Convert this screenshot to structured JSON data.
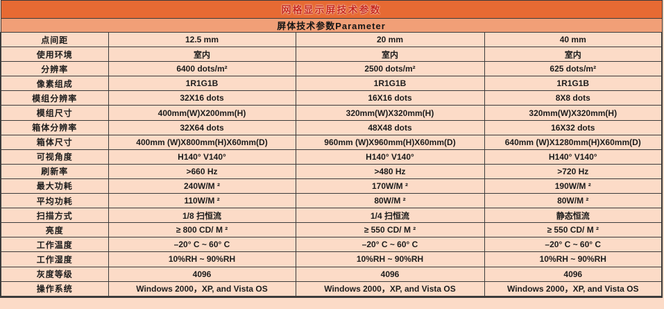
{
  "title": "网格显示屏技术参数",
  "subtitle": "屏体技术参数Parameter",
  "colors": {
    "title_bg": "#e76a33",
    "title_text": "#c8281c",
    "subtitle_bg": "#f19f77",
    "cell_bg": "#fcdbc7",
    "border": "#3b3b3b",
    "text": "#1c1c1c"
  },
  "table": {
    "rows": [
      {
        "label": "点间距",
        "values": [
          "12.5 mm",
          "20 mm",
          "40 mm"
        ]
      },
      {
        "label": "使用环境",
        "values": [
          "室内",
          "室内",
          "室内"
        ]
      },
      {
        "label": "分辨率",
        "values": [
          "6400 dots/m²",
          "2500 dots/m²",
          "625 dots/m²"
        ]
      },
      {
        "label": "像素组成",
        "values": [
          "1R1G1B",
          "1R1G1B",
          "1R1G1B"
        ]
      },
      {
        "label": "模组分辨率",
        "values": [
          "32X16 dots",
          "16X16 dots",
          "8X8 dots"
        ]
      },
      {
        "label": "模组尺寸",
        "values": [
          "400mm(W)X200mm(H)",
          "320mm(W)X320mm(H)",
          "320mm(W)X320mm(H)"
        ]
      },
      {
        "label": "箱体分辨率",
        "values": [
          "32X64 dots",
          "48X48 dots",
          "16X32 dots"
        ]
      },
      {
        "label": "箱体尺寸",
        "values": [
          "400mm (W)X800mm(H)X60mm(D)",
          "960mm (W)X960mm(H)X60mm(D)",
          "640mm (W)X1280mm(H)X60mm(D)"
        ]
      },
      {
        "label": "可视角度",
        "values": [
          "H140°  V140°",
          "H140°  V140°",
          "H140°  V140°"
        ]
      },
      {
        "label": "刷新率",
        "values": [
          ">660 Hz",
          ">480 Hz",
          ">720 Hz"
        ]
      },
      {
        "label": "最大功耗",
        "values": [
          "240W/M ²",
          "170W/M ²",
          "190W/M ²"
        ]
      },
      {
        "label": "平均功耗",
        "values": [
          "110W/M ²",
          "80W/M ²",
          "80W/M ²"
        ]
      },
      {
        "label": "扫描方式",
        "values": [
          "1/8 扫恒流",
          "1/4 扫恒流",
          "静态恒流"
        ]
      },
      {
        "label": "亮度",
        "values": [
          "≥ 800 CD/ M ²",
          "≥ 550 CD/ M ²",
          "≥ 550 CD/ M ²"
        ]
      },
      {
        "label": "工作温度",
        "values": [
          "–20° C ~ 60° C",
          "–20° C ~ 60° C",
          "–20° C ~ 60° C"
        ]
      },
      {
        "label": "工作湿度",
        "values": [
          "10%RH ~ 90%RH",
          "10%RH ~ 90%RH",
          "10%RH ~ 90%RH"
        ]
      },
      {
        "label": "灰度等级",
        "values": [
          "4096",
          "4096",
          "4096"
        ]
      },
      {
        "label": "操作系统",
        "values": [
          "Windows 2000，XP, and Vista OS",
          "Windows 2000，XP, and Vista OS",
          "Windows 2000，XP, and Vista OS"
        ]
      }
    ]
  }
}
